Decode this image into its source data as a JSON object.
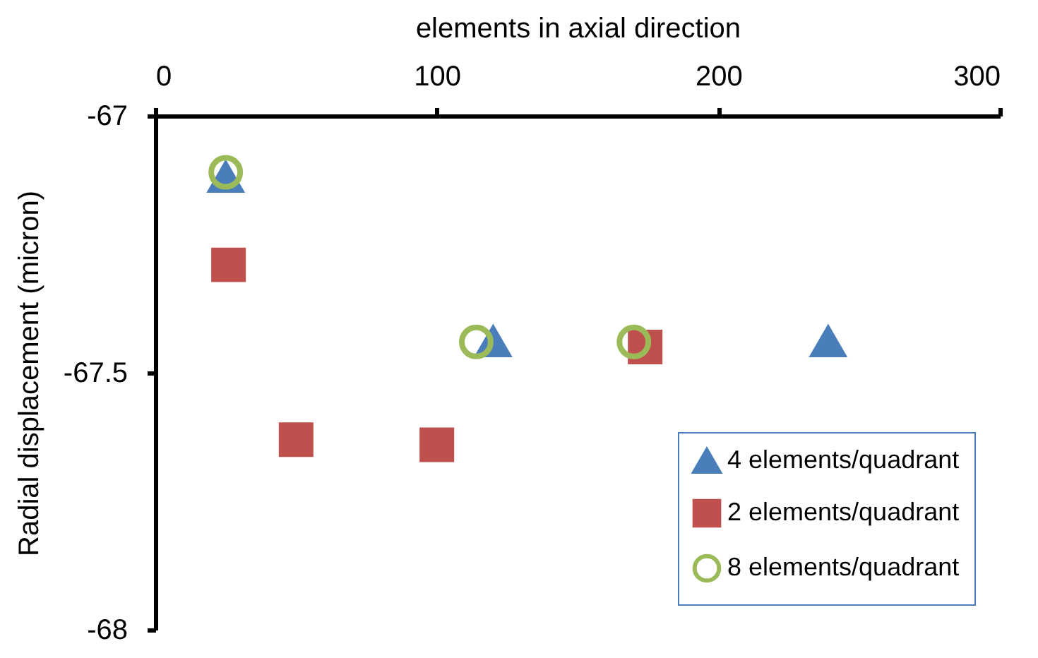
{
  "chart_data": {
    "type": "scatter",
    "xlabel": "elements in axial direction",
    "ylabel": "Radial displacement (micron)",
    "xlim": [
      0,
      300
    ],
    "xticks": [
      0,
      100,
      200,
      300
    ],
    "ylim": [
      -68,
      -67
    ],
    "yticks": [
      {
        "value": -68,
        "label": "-68"
      },
      {
        "value": -67.5,
        "label": "-67.5"
      },
      {
        "value": -67,
        "label": "-67"
      }
    ],
    "grid": false,
    "legend": "bottom right",
    "series": [
      {
        "name": "4 elements/quadrant",
        "color": "#4a7ebb",
        "marker": "triangle",
        "x": [
          25,
          120,
          239
        ],
        "values": [
          -67.12,
          -67.44,
          -67.44
        ]
      },
      {
        "name": "2 elements/quadrant",
        "color": "#c0504d",
        "marker": "square",
        "x": [
          26,
          50,
          100,
          174
        ],
        "values": [
          -67.29,
          -67.63,
          -67.64,
          -67.45
        ]
      },
      {
        "name": "8 elements/quadrant",
        "color": "#9bbb59",
        "marker": "circle",
        "x": [
          25,
          114,
          170
        ],
        "values": [
          -67.11,
          -67.44,
          -67.44
        ]
      }
    ]
  }
}
